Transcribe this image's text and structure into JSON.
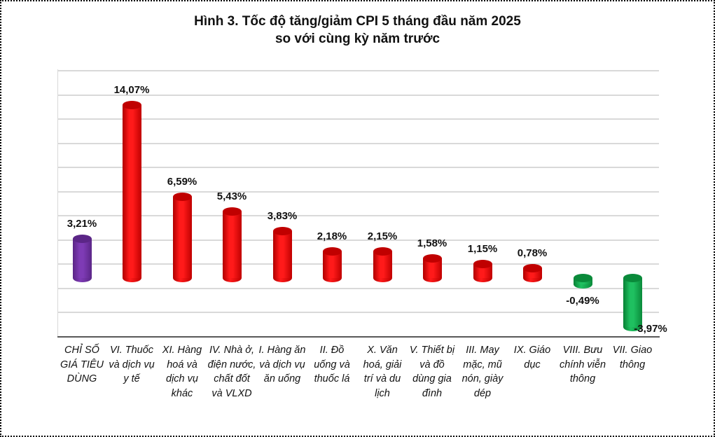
{
  "chart": {
    "title_line1": "Hình 3. Tốc độ tăng/giảm CPI 5 tháng đầu năm 2025",
    "title_line2": "so với cùng kỳ năm trước"
  },
  "colors": {
    "total": "#7030a0",
    "increase": "#ff0000",
    "decrease": "#00b050",
    "grid": "#d9d9d9",
    "axis": "#595959"
  },
  "bars": [
    {
      "label": "CHỈ SỐ GIÁ TIÊU DÙNG",
      "value_label": "3,21%",
      "value": 3.21,
      "kind": "total"
    },
    {
      "label": "VI. Thuốc và dịch vụ y tế",
      "value_label": "14,07%",
      "value": 14.07,
      "kind": "increase"
    },
    {
      "label": "XI. Hàng hoá và dịch vụ khác",
      "value_label": "6,59%",
      "value": 6.59,
      "kind": "increase"
    },
    {
      "label": "IV. Nhà ở, điện nước, chất đốt và VLXD",
      "value_label": "5,43%",
      "value": 5.43,
      "kind": "increase"
    },
    {
      "label": "I. Hàng ăn và dịch vụ ăn uống",
      "value_label": "3,83%",
      "value": 3.83,
      "kind": "increase"
    },
    {
      "label": "II. Đồ uống và thuốc lá",
      "value_label": "2,18%",
      "value": 2.18,
      "kind": "increase"
    },
    {
      "label": "X. Văn hoá, giải trí và du lịch",
      "value_label": "2,15%",
      "value": 2.15,
      "kind": "increase"
    },
    {
      "label": "V. Thiết bị và đồ dùng gia đình",
      "value_label": "1,58%",
      "value": 1.58,
      "kind": "increase"
    },
    {
      "label": "III. May mặc, mũ nón, giày dép",
      "value_label": "1,15%",
      "value": 1.15,
      "kind": "increase"
    },
    {
      "label": "IX. Giáo dục",
      "value_label": "0,78%",
      "value": 0.78,
      "kind": "increase"
    },
    {
      "label": "VIII. Bưu chính viễn thông",
      "value_label": "-0,49%",
      "value": -0.49,
      "kind": "decrease"
    },
    {
      "label": "VII. Giao thông",
      "value_label": "-3,97%",
      "value": -3.97,
      "kind": "decrease"
    }
  ],
  "chart_data": {
    "type": "bar",
    "title": "Hình 3. Tốc độ tăng/giảm CPI 5 tháng đầu năm 2025 so với cùng kỳ năm trước",
    "xlabel": "",
    "ylabel": "",
    "categories": [
      "CHỈ SỐ GIÁ TIÊU DÙNG",
      "VI. Thuốc và dịch vụ y tế",
      "XI. Hàng hoá và dịch vụ khác",
      "IV. Nhà ở, điện nước, chất đốt và VLXD",
      "I. Hàng ăn và dịch vụ ăn uống",
      "II. Đồ uống và thuốc lá",
      "X. Văn hoá, giải trí và du lịch",
      "V. Thiết bị và đồ dùng gia đình",
      "III. May mặc, mũ nón, giày dép",
      "IX. Giáo dục",
      "VIII. Bưu chính viễn thông",
      "VII. Giao thông"
    ],
    "values": [
      3.21,
      14.07,
      6.59,
      5.43,
      3.83,
      2.18,
      2.15,
      1.58,
      1.15,
      0.78,
      -0.49,
      -3.97
    ],
    "unit": "%",
    "data_labels": [
      "3,21%",
      "14,07%",
      "6,59%",
      "5,43%",
      "3,83%",
      "2,18%",
      "2,15%",
      "1,58%",
      "1,15%",
      "0,78%",
      "-0,49%",
      "-3,97%"
    ],
    "bar_colors": [
      "#7030a0",
      "#ff0000",
      "#ff0000",
      "#ff0000",
      "#ff0000",
      "#ff0000",
      "#ff0000",
      "#ff0000",
      "#ff0000",
      "#ff0000",
      "#00b050",
      "#00b050"
    ],
    "style": "3D cylinder",
    "ylim": [
      -4,
      16
    ],
    "grid": true,
    "y_tick_labels_visible": false,
    "legend": null
  }
}
